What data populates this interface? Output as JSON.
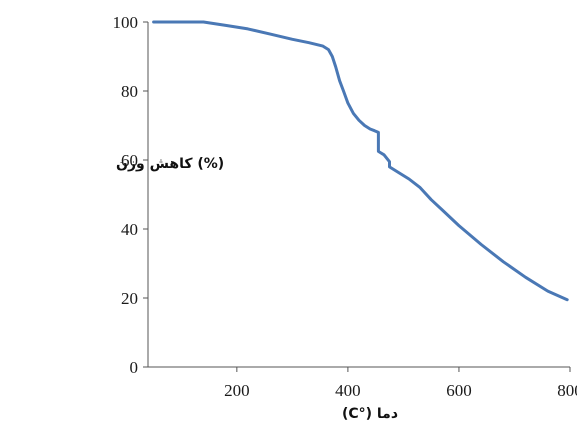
{
  "chart_data": {
    "type": "line",
    "title": "",
    "xlabel": "دما (°C)",
    "ylabel": "(%) کاهش وزن",
    "xlim": [
      40,
      800
    ],
    "ylim": [
      0,
      100
    ],
    "x_ticks": [
      200,
      400,
      600,
      800
    ],
    "y_ticks": [
      0,
      20,
      40,
      60,
      80,
      100
    ],
    "grid": false,
    "legend": "none",
    "series": [
      {
        "color": "#4a78b5",
        "x": [
          50,
          70,
          100,
          140,
          180,
          220,
          260,
          300,
          330,
          355,
          365,
          372,
          378,
          385,
          392,
          400,
          410,
          420,
          430,
          440,
          448,
          455,
          455,
          465,
          475,
          475,
          490,
          510,
          530,
          550,
          570,
          600,
          640,
          680,
          720,
          760,
          795
        ],
        "y": [
          100,
          100,
          100,
          100,
          99,
          98,
          96.5,
          95,
          94,
          93,
          92,
          90,
          87,
          83,
          80,
          76.5,
          73.5,
          71.5,
          70,
          69,
          68.5,
          68,
          62.5,
          61.5,
          59.5,
          58,
          56.5,
          54.5,
          52,
          48.5,
          45.5,
          41,
          35.5,
          30.5,
          26,
          22,
          19.5
        ]
      }
    ]
  }
}
